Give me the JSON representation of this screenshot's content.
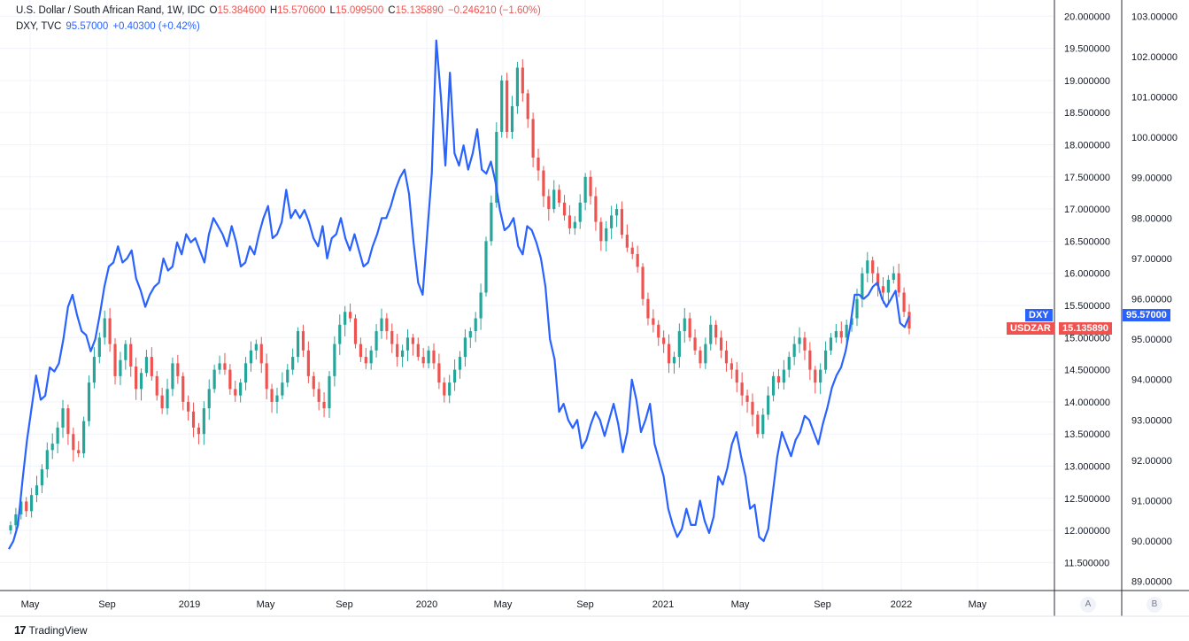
{
  "legend": {
    "symbol": "U.S. Dollar / South African Rand, 1W, IDC",
    "open_label": "O",
    "open": "15.384600",
    "high_label": "H",
    "high": "15.570600",
    "low_label": "L",
    "low": "15.099500",
    "close_label": "C",
    "close": "15.135890",
    "change": "−0.246210 (−1.60%)",
    "dxy_symbol": "DXY, TVC",
    "dxy_value": "95.57000",
    "dxy_change": "+0.40300 (+0.42%)"
  },
  "price_tags": {
    "dxy_label": "DXY",
    "dxy_value": "95.57000",
    "usdzar_label": "USDZAR",
    "usdzar_value": "15.135890"
  },
  "scale_buttons": {
    "left": "A",
    "right": "B"
  },
  "footer": {
    "brand": "TradingView",
    "logo_glyph": "17"
  },
  "colors": {
    "up": "#26a69a",
    "down": "#ef5350",
    "dxy_line": "#2962ff",
    "grid": "#f0f3fa",
    "axis_text": "#131722"
  },
  "chart_data": {
    "type": "line",
    "x_tick_labels": [
      "May",
      "Sep",
      "2019",
      "May",
      "Sep",
      "2020",
      "May",
      "Sep",
      "2021",
      "May",
      "Sep",
      "2022",
      "May"
    ],
    "y_left_ticks": [
      "20.000000",
      "19.500000",
      "19.000000",
      "18.500000",
      "18.000000",
      "17.500000",
      "17.000000",
      "16.500000",
      "16.000000",
      "15.500000",
      "15.000000",
      "14.500000",
      "14.000000",
      "13.500000",
      "13.000000",
      "12.500000",
      "12.000000",
      "11.500000"
    ],
    "y_right_ticks": [
      "103.00000",
      "102.00000",
      "101.00000",
      "100.00000",
      "99.00000",
      "98.00000",
      "97.00000",
      "96.00000",
      "95.00000",
      "94.00000",
      "93.00000",
      "92.00000",
      "91.00000",
      "90.00000",
      "89.00000"
    ],
    "y_left_range": [
      11.25,
      20.25
    ],
    "y_right_range": [
      88.5,
      103.5
    ],
    "grid": true,
    "series": [
      {
        "name": "USDZAR",
        "kind": "candlestick",
        "values": [
          12.08,
          12.25,
          12.45,
          12.3,
          12.55,
          12.7,
          12.95,
          13.25,
          13.35,
          13.6,
          13.9,
          13.5,
          13.25,
          13.2,
          13.7,
          14.3,
          14.7,
          15.0,
          15.3,
          14.9,
          14.4,
          14.65,
          14.9,
          14.55,
          14.2,
          14.45,
          14.7,
          14.4,
          14.1,
          13.9,
          14.2,
          14.6,
          14.4,
          14.0,
          13.85,
          13.6,
          13.5,
          13.9,
          14.2,
          14.5,
          14.6,
          14.5,
          14.2,
          14.1,
          14.3,
          14.6,
          14.8,
          14.9,
          14.6,
          14.2,
          14.0,
          14.1,
          14.3,
          14.5,
          14.7,
          15.1,
          14.8,
          14.4,
          14.2,
          14.0,
          13.9,
          14.4,
          14.9,
          15.2,
          15.4,
          15.3,
          14.9,
          14.7,
          14.6,
          14.8,
          15.1,
          15.3,
          15.1,
          14.9,
          14.7,
          14.8,
          15.0,
          14.9,
          14.7,
          14.6,
          14.8,
          14.6,
          14.3,
          14.1,
          14.3,
          14.5,
          14.7,
          15.0,
          15.1,
          15.3,
          15.7,
          16.5,
          17.1,
          18.2,
          19.0,
          18.2,
          18.6,
          19.2,
          18.8,
          18.4,
          17.8,
          17.6,
          17.2,
          17.0,
          17.3,
          17.1,
          16.9,
          16.7,
          16.8,
          17.1,
          17.5,
          17.2,
          16.8,
          16.5,
          16.7,
          16.9,
          17.0,
          16.6,
          16.4,
          16.3,
          16.1,
          15.6,
          15.3,
          15.2,
          15.0,
          14.9,
          14.6,
          14.7,
          15.1,
          15.3,
          15.0,
          14.8,
          14.6,
          14.9,
          15.2,
          15.0,
          14.8,
          14.6,
          14.5,
          14.3,
          14.1,
          14.0,
          13.8,
          13.5,
          13.8,
          14.1,
          14.4,
          14.3,
          14.5,
          14.7,
          14.9,
          15.0,
          14.8,
          14.5,
          14.3,
          14.5,
          14.8,
          15.0,
          15.1,
          15.0,
          15.2,
          15.3,
          15.6,
          16.0,
          16.2,
          16.0,
          15.8,
          15.7,
          15.9,
          16.0,
          15.7,
          15.4,
          15.14
        ]
      },
      {
        "name": "DXY",
        "kind": "line",
        "values": [
          89.8,
          90.0,
          90.4,
          91.5,
          92.5,
          93.3,
          94.1,
          93.5,
          93.6,
          94.3,
          94.2,
          94.4,
          95.0,
          95.8,
          96.1,
          95.6,
          95.2,
          95.1,
          94.7,
          95.0,
          95.6,
          96.3,
          96.8,
          96.9,
          97.3,
          96.9,
          97.0,
          97.2,
          96.5,
          96.2,
          95.8,
          96.1,
          96.3,
          96.4,
          97.0,
          96.7,
          96.8,
          97.4,
          97.1,
          97.6,
          97.4,
          97.5,
          97.2,
          96.9,
          97.6,
          98.0,
          97.8,
          97.6,
          97.3,
          97.8,
          97.4,
          96.8,
          96.9,
          97.3,
          97.1,
          97.6,
          98.0,
          98.3,
          97.5,
          97.6,
          97.9,
          98.7,
          98.0,
          98.2,
          98.0,
          98.2,
          97.9,
          97.5,
          97.3,
          97.8,
          97.0,
          97.5,
          97.6,
          98.0,
          97.5,
          97.2,
          97.6,
          97.2,
          96.8,
          96.9,
          97.3,
          97.6,
          98.0,
          98.0,
          98.3,
          98.7,
          99.0,
          99.2,
          98.6,
          97.4,
          96.4,
          96.1,
          97.6,
          99.1,
          102.4,
          101.0,
          99.3,
          101.6,
          99.6,
          99.3,
          99.8,
          99.2,
          99.6,
          100.2,
          99.2,
          99.1,
          99.4,
          98.9,
          98.2,
          97.7,
          97.8,
          98.0,
          97.3,
          97.1,
          97.8,
          97.7,
          97.4,
          97.0,
          96.3,
          95.0,
          94.5,
          93.2,
          93.4,
          93.0,
          92.8,
          93.0,
          92.3,
          92.5,
          92.9,
          93.2,
          93.0,
          92.6,
          93.0,
          93.4,
          92.9,
          92.2,
          92.7,
          94.0,
          93.5,
          92.7,
          93.0,
          93.4,
          92.4,
          92.0,
          91.6,
          90.8,
          90.4,
          90.1,
          90.3,
          90.8,
          90.4,
          90.4,
          91.0,
          90.5,
          90.2,
          90.6,
          91.6,
          91.4,
          91.8,
          92.4,
          92.7,
          92.1,
          91.6,
          90.8,
          90.9,
          90.1,
          90.0,
          90.3,
          91.2,
          92.1,
          92.7,
          92.4,
          92.1,
          92.5,
          92.7,
          93.1,
          93.0,
          92.7,
          92.4,
          92.9,
          93.3,
          93.8,
          94.1,
          94.3,
          94.7,
          95.3,
          96.1,
          96.1,
          96.0,
          96.1,
          96.3,
          96.4,
          96.0,
          95.8,
          96.0,
          96.2,
          95.4,
          95.3,
          95.57
        ]
      }
    ]
  }
}
